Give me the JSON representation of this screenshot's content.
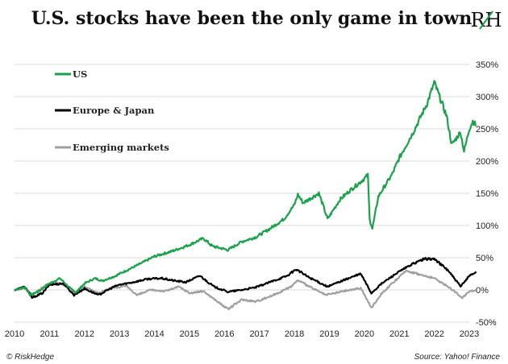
{
  "header": {
    "title": "U.S. stocks have been the only game in town",
    "logo_text": "RH"
  },
  "footer": {
    "left": "© RiskHedge",
    "right": "Source: Yahoo! Finance"
  },
  "colors": {
    "us": "#1aa14a",
    "europe_japan": "#000000",
    "emerging": "#a0a0a0",
    "grid": "#d9d9d9",
    "logo_accent": "#1aa14a"
  },
  "chart_data": {
    "type": "line",
    "title": "U.S. stocks have been the only game in town",
    "xlabel": "",
    "ylabel": "",
    "xlim": [
      2010,
      2023
    ],
    "ylim": [
      -50,
      350
    ],
    "x_ticks": [
      "2010",
      "2011",
      "2012",
      "2013",
      "2014",
      "2015",
      "2016",
      "2017",
      "2018",
      "2019",
      "2020",
      "2021",
      "2022",
      "2023"
    ],
    "y_ticks": [
      "350%",
      "300%",
      "250%",
      "200%",
      "150%",
      "100%",
      "50%",
      "0%",
      "-50%"
    ],
    "y_tick_values": [
      350,
      300,
      250,
      200,
      150,
      100,
      50,
      0,
      -50
    ],
    "grid": "horizontal",
    "legend": "top-left",
    "series": [
      {
        "name": "US",
        "color": "#1aa14a",
        "points": [
          [
            2010.0,
            0
          ],
          [
            2010.3,
            4
          ],
          [
            2010.45,
            -8
          ],
          [
            2010.7,
            -2
          ],
          [
            2011.0,
            10
          ],
          [
            2011.3,
            18
          ],
          [
            2011.6,
            2
          ],
          [
            2011.75,
            -4
          ],
          [
            2012.0,
            10
          ],
          [
            2012.3,
            18
          ],
          [
            2012.5,
            14
          ],
          [
            2012.9,
            22
          ],
          [
            2013.0,
            25
          ],
          [
            2013.5,
            38
          ],
          [
            2014.0,
            52
          ],
          [
            2014.5,
            60
          ],
          [
            2015.0,
            70
          ],
          [
            2015.4,
            80
          ],
          [
            2015.65,
            68
          ],
          [
            2016.1,
            62
          ],
          [
            2016.5,
            75
          ],
          [
            2016.9,
            82
          ],
          [
            2017.3,
            95
          ],
          [
            2017.7,
            110
          ],
          [
            2018.0,
            132
          ],
          [
            2018.1,
            148
          ],
          [
            2018.25,
            135
          ],
          [
            2018.7,
            150
          ],
          [
            2018.95,
            110
          ],
          [
            2019.3,
            140
          ],
          [
            2019.6,
            155
          ],
          [
            2019.9,
            168
          ],
          [
            2020.1,
            178
          ],
          [
            2020.15,
            110
          ],
          [
            2020.23,
            95
          ],
          [
            2020.4,
            145
          ],
          [
            2020.8,
            180
          ],
          [
            2021.0,
            205
          ],
          [
            2021.4,
            245
          ],
          [
            2021.8,
            290
          ],
          [
            2022.0,
            322
          ],
          [
            2022.15,
            300
          ],
          [
            2022.35,
            270
          ],
          [
            2022.5,
            225
          ],
          [
            2022.75,
            245
          ],
          [
            2022.85,
            215
          ],
          [
            2023.0,
            250
          ],
          [
            2023.1,
            262
          ],
          [
            2023.2,
            255
          ]
        ]
      },
      {
        "name": "Europe & Japan",
        "color": "#000000",
        "points": [
          [
            2010.0,
            0
          ],
          [
            2010.3,
            5
          ],
          [
            2010.5,
            -12
          ],
          [
            2010.8,
            -5
          ],
          [
            2011.0,
            8
          ],
          [
            2011.4,
            10
          ],
          [
            2011.7,
            -8
          ],
          [
            2012.0,
            2
          ],
          [
            2012.4,
            -8
          ],
          [
            2012.8,
            4
          ],
          [
            2013.0,
            8
          ],
          [
            2013.4,
            12
          ],
          [
            2013.8,
            17
          ],
          [
            2014.2,
            18
          ],
          [
            2014.6,
            14
          ],
          [
            2014.9,
            12
          ],
          [
            2015.3,
            22
          ],
          [
            2015.7,
            5
          ],
          [
            2016.1,
            -3
          ],
          [
            2016.5,
            0
          ],
          [
            2016.9,
            4
          ],
          [
            2017.3,
            12
          ],
          [
            2017.8,
            22
          ],
          [
            2018.05,
            32
          ],
          [
            2018.4,
            20
          ],
          [
            2018.95,
            5
          ],
          [
            2019.4,
            15
          ],
          [
            2019.9,
            25
          ],
          [
            2020.2,
            -5
          ],
          [
            2020.5,
            10
          ],
          [
            2020.9,
            25
          ],
          [
            2021.3,
            38
          ],
          [
            2021.7,
            48
          ],
          [
            2022.0,
            48
          ],
          [
            2022.4,
            30
          ],
          [
            2022.75,
            5
          ],
          [
            2023.0,
            22
          ],
          [
            2023.2,
            28
          ]
        ]
      },
      {
        "name": "Emerging markets",
        "color": "#a0a0a0",
        "points": [
          [
            2010.0,
            0
          ],
          [
            2010.3,
            3
          ],
          [
            2010.5,
            -8
          ],
          [
            2010.9,
            8
          ],
          [
            2011.3,
            12
          ],
          [
            2011.7,
            -5
          ],
          [
            2012.0,
            5
          ],
          [
            2012.4,
            -5
          ],
          [
            2012.8,
            3
          ],
          [
            2013.2,
            6
          ],
          [
            2013.5,
            -8
          ],
          [
            2013.9,
            0
          ],
          [
            2014.3,
            -2
          ],
          [
            2014.7,
            5
          ],
          [
            2015.0,
            -5
          ],
          [
            2015.4,
            -2
          ],
          [
            2015.8,
            -18
          ],
          [
            2016.1,
            -30
          ],
          [
            2016.5,
            -15
          ],
          [
            2016.9,
            -18
          ],
          [
            2017.4,
            -8
          ],
          [
            2017.9,
            5
          ],
          [
            2018.1,
            15
          ],
          [
            2018.5,
            3
          ],
          [
            2018.9,
            -8
          ],
          [
            2019.4,
            -2
          ],
          [
            2019.9,
            3
          ],
          [
            2020.2,
            -28
          ],
          [
            2020.5,
            -5
          ],
          [
            2020.9,
            15
          ],
          [
            2021.2,
            30
          ],
          [
            2021.7,
            22
          ],
          [
            2022.0,
            18
          ],
          [
            2022.4,
            5
          ],
          [
            2022.8,
            -12
          ],
          [
            2023.0,
            -2
          ],
          [
            2023.2,
            0
          ]
        ]
      }
    ]
  }
}
